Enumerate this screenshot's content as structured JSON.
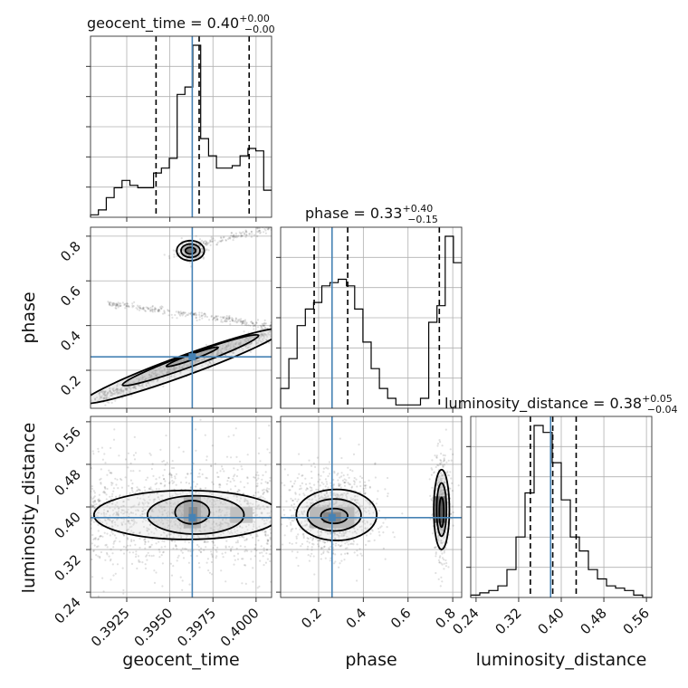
{
  "chart_data": {
    "type": "corner",
    "parameters": [
      "geocent_time",
      "phase",
      "luminosity_distance"
    ],
    "truths": {
      "geocent_time": 0.3963,
      "phase": 0.26,
      "luminosity_distance": 0.38
    },
    "truth_color": "#4682b4",
    "ranges": {
      "geocent_time": [
        0.3904,
        0.4009
      ],
      "phase": [
        0.03,
        0.84
      ],
      "luminosity_distance": [
        0.23,
        0.57
      ]
    },
    "ticks": {
      "geocent_time": [
        0.3925,
        0.395,
        0.3975,
        0.4
      ],
      "phase": [
        0.2,
        0.4,
        0.6,
        0.8
      ],
      "luminosity_distance": [
        0.24,
        0.32,
        0.4,
        0.48,
        0.56
      ]
    },
    "tick_labels": {
      "geocent_time": [
        "0.3925",
        "0.3950",
        "0.3975",
        "0.4000"
      ],
      "phase": [
        "0.2",
        "0.4",
        "0.6",
        "0.8"
      ],
      "luminosity_distance": [
        "0.24",
        "0.32",
        "0.40",
        "0.48",
        "0.56"
      ]
    },
    "axis_labels": {
      "geocent_time": "geocent_time",
      "phase": "phase",
      "luminosity_distance": "luminosity_distance"
    },
    "titles": [
      {
        "name": "geocent_time",
        "main": "geocent_time = 0.40",
        "upper": "+0.00",
        "lower": "−0.00"
      },
      {
        "name": "phase",
        "main": "phase = 0.33",
        "upper": "+0.40",
        "lower": "−0.15"
      },
      {
        "name": "luminosity_distance",
        "main": "luminosity_distance = 0.38",
        "upper": "+0.05",
        "lower": "−0.04"
      }
    ],
    "quantiles": {
      "geocent_time": [
        0.3942,
        0.3967,
        0.3996
      ],
      "phase": [
        0.18,
        0.33,
        0.74
      ],
      "luminosity_distance": [
        0.342,
        0.384,
        0.428
      ]
    },
    "histograms": {
      "geocent_time": {
        "edges_range": [
          0.3904,
          0.4009
        ],
        "counts": [
          1,
          3,
          8,
          12,
          15,
          13,
          12,
          12,
          18,
          20,
          24,
          50,
          53,
          70,
          32,
          25,
          20,
          20,
          21,
          25,
          28,
          27,
          11
        ]
      },
      "phase": {
        "edges_range": [
          0.03,
          0.84
        ],
        "counts": [
          6,
          15,
          25,
          30,
          32,
          37,
          38,
          39,
          37,
          30,
          20,
          12,
          6,
          3,
          1,
          1,
          1,
          3,
          26,
          31,
          52,
          44
        ]
      },
      "luminosity_distance": {
        "edges_range": [
          0.23,
          0.57
        ],
        "counts": [
          1,
          2,
          3,
          5,
          12,
          26,
          45,
          74,
          71,
          58,
          42,
          26,
          20,
          12,
          8,
          5,
          4,
          3,
          1,
          0
        ]
      }
    },
    "grid": true
  }
}
